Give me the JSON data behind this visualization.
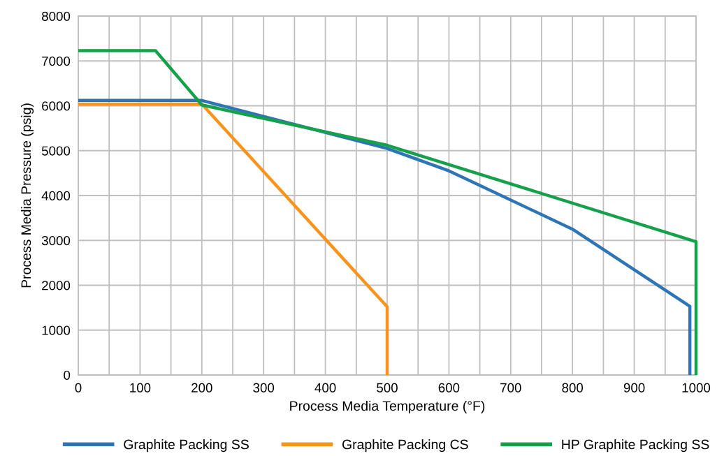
{
  "chart_data": {
    "type": "line",
    "xlabel": "Process Media Temperature (°F)",
    "ylabel": "Process Media Pressure (psig)",
    "xlim": [
      0,
      1000
    ],
    "ylim": [
      0,
      8000
    ],
    "xticks": [
      0,
      {
        "value": 50,
        "label": null
      },
      100,
      {
        "value": 150,
        "label": null
      },
      200,
      {
        "value": 250,
        "label": null
      },
      300,
      {
        "value": 350,
        "label": null
      },
      400,
      {
        "value": 450,
        "label": null
      },
      500,
      {
        "value": 550,
        "label": null
      },
      600,
      {
        "value": 650,
        "label": null
      },
      700,
      {
        "value": 750,
        "label": null
      },
      800,
      {
        "value": 850,
        "label": null
      },
      900,
      {
        "value": 950,
        "label": null
      },
      1000
    ],
    "yticks": [
      0,
      1000,
      2000,
      3000,
      4000,
      5000,
      6000,
      7000,
      8000
    ],
    "grid": true,
    "legend": "bottom",
    "marker": "none",
    "line_style": "solid",
    "series": [
      {
        "name": "Graphite Packing SS",
        "color": "#2e75b6",
        "x": [
          0,
          200,
          500,
          600,
          800,
          990,
          990
        ],
        "values": [
          6120,
          6120,
          5050,
          4550,
          3250,
          1530,
          0
        ]
      },
      {
        "name": "Graphite Packing CS",
        "color": "#f7941d",
        "x": [
          0,
          200,
          500,
          500
        ],
        "values": [
          6040,
          6040,
          1520,
          0
        ]
      },
      {
        "name": "HP Graphite Packing SS",
        "color": "#17a04b",
        "x": [
          0,
          125,
          200,
          500,
          1000,
          1000
        ],
        "values": [
          7230,
          7230,
          6020,
          5120,
          2970,
          0
        ]
      }
    ]
  }
}
